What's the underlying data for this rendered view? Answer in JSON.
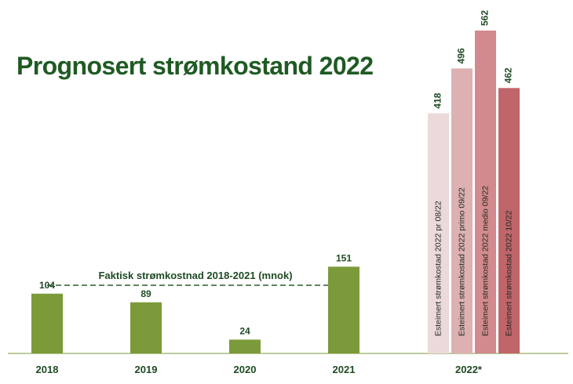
{
  "title": "Prognosert strømkostand 2022",
  "chart_data": {
    "type": "bar",
    "title": "Prognosert strømkostand 2022",
    "annotation": "Faktisk strømkostnad 2018-2021 (mnok)",
    "categories": [
      "2018",
      "2019",
      "2020",
      "2021",
      "2022*"
    ],
    "actual": [
      {
        "year": "2018",
        "value": 104
      },
      {
        "year": "2019",
        "value": 89
      },
      {
        "year": "2020",
        "value": 24
      },
      {
        "year": "2021",
        "value": 151
      }
    ],
    "estimates_2022": [
      {
        "label": "Esteimert strømkostad 2022 pr 08/22",
        "value": 418,
        "color": "#ecd9da"
      },
      {
        "label": "Esteimert strømkostad 2022 primo  09/22",
        "value": 496,
        "color": "#ddb0b2"
      },
      {
        "label": "Esteimert strømkostad 2022 medio  09/22",
        "value": 562,
        "color": "#d28a8e"
      },
      {
        "label": "Esteimert strømkostad 2022 10/22",
        "value": 462,
        "color": "#c0656a"
      }
    ],
    "actual_color": "#7b9a3a",
    "grid": false,
    "legend": "none"
  }
}
